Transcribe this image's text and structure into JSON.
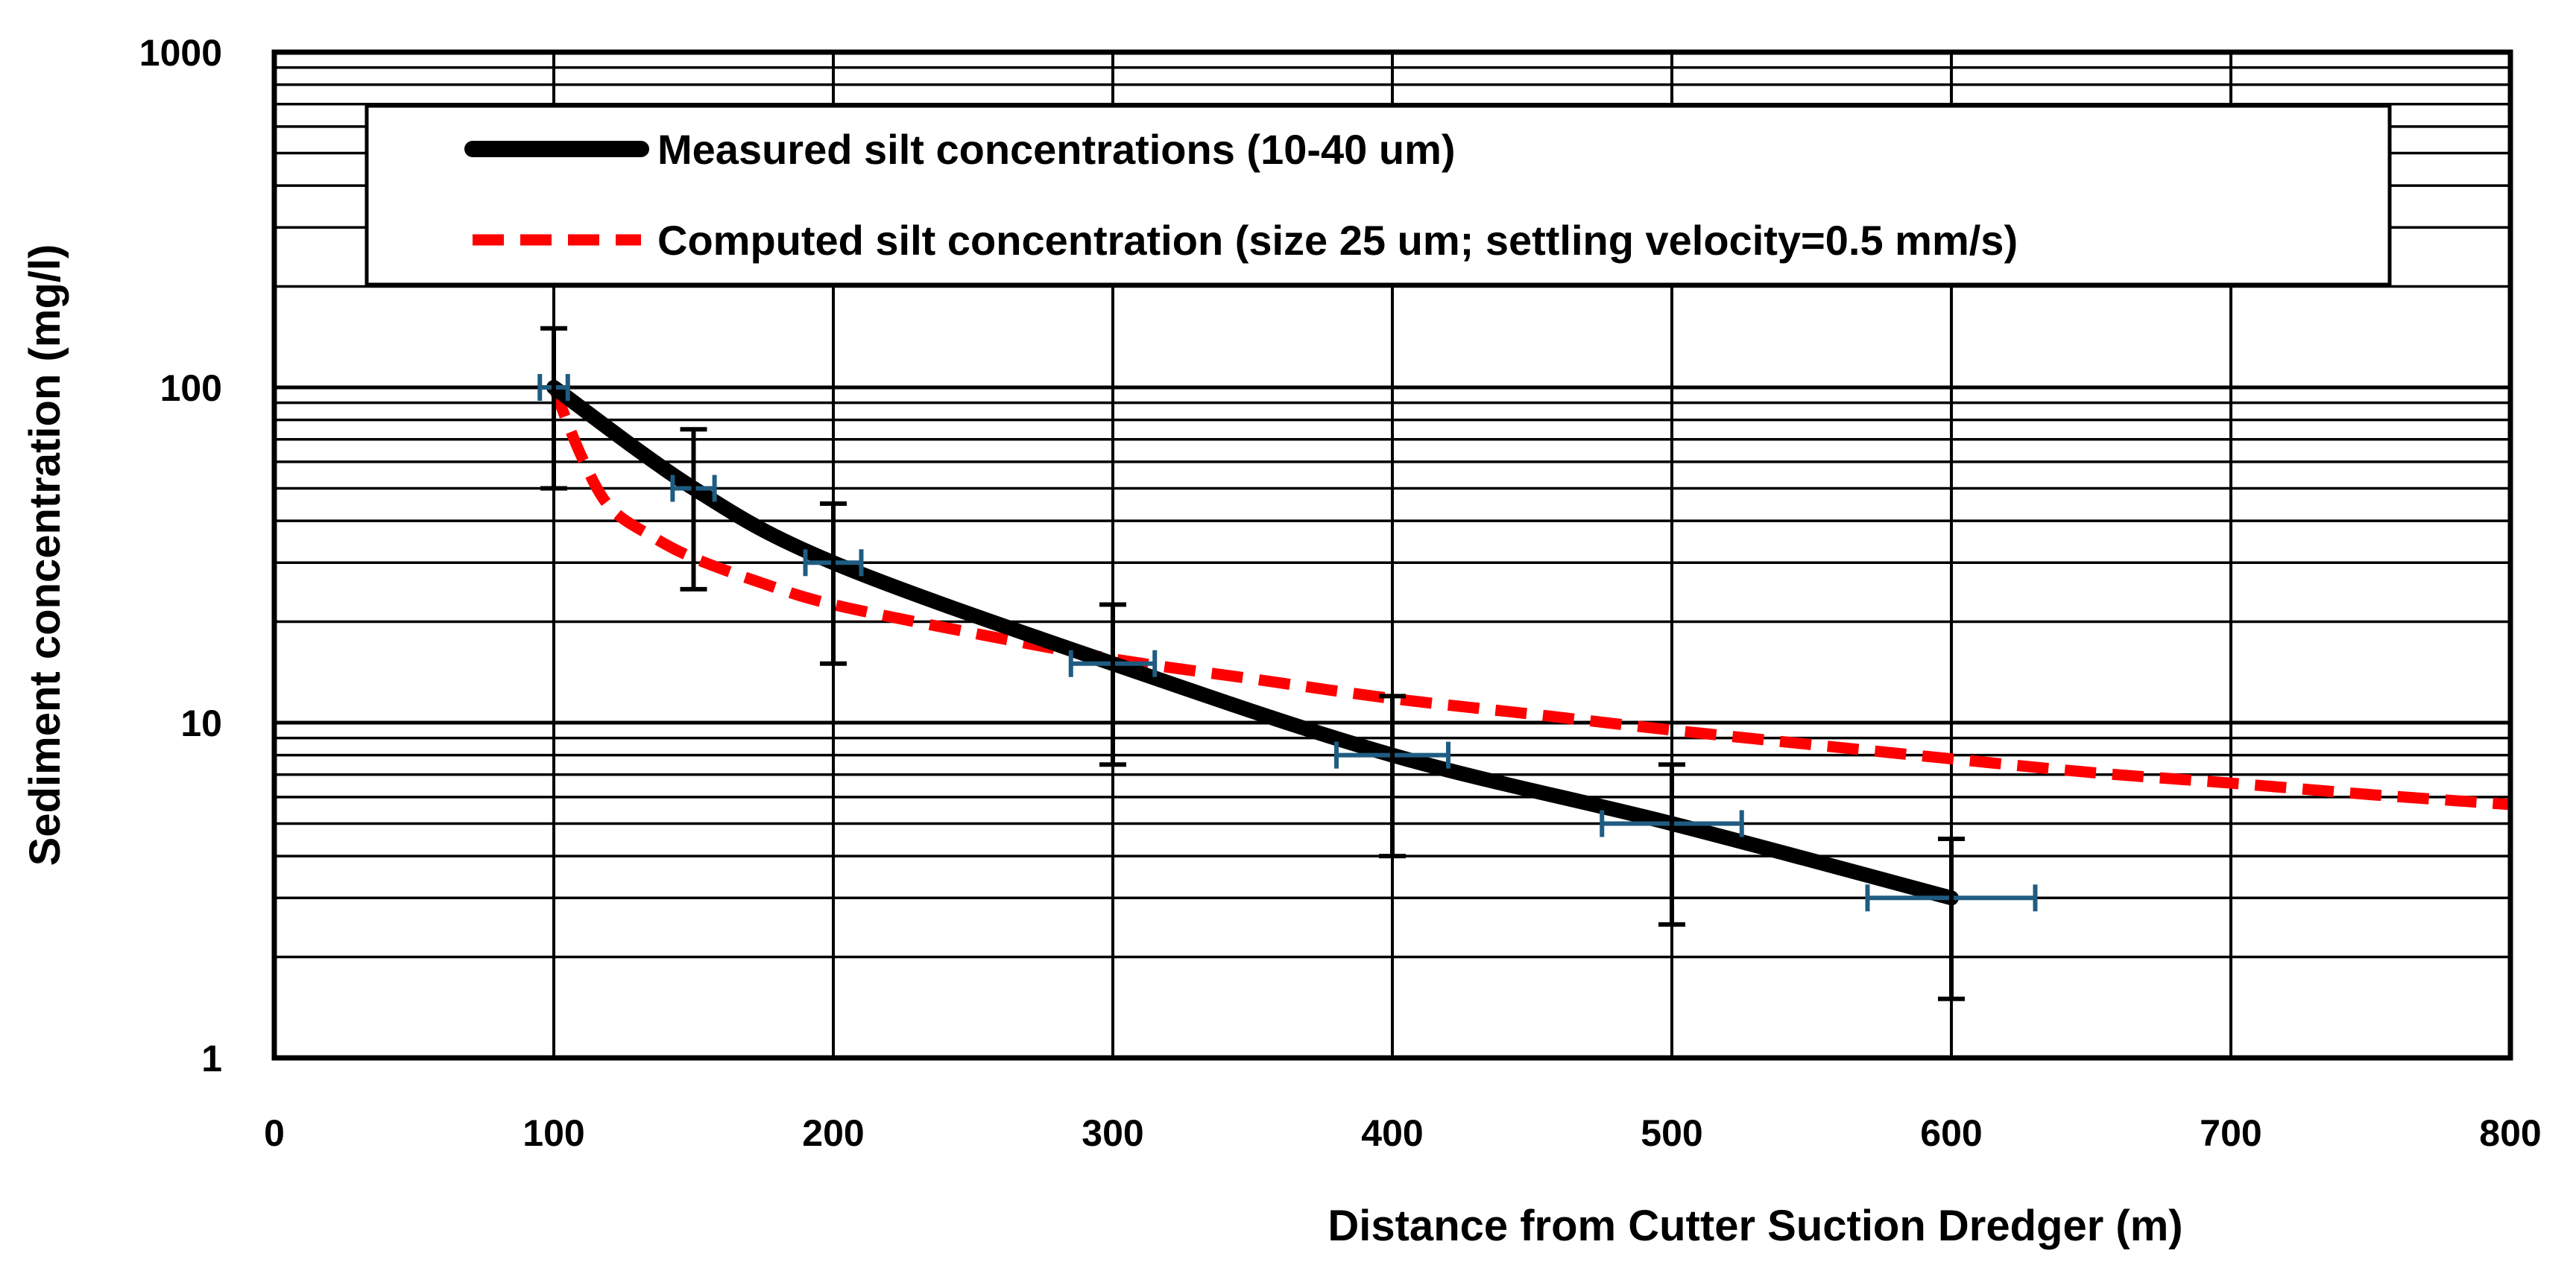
{
  "chart_data": {
    "type": "line",
    "title": "",
    "xlabel": "Distance from Cutter Suction Dredger (m)",
    "ylabel": "Sediment concentration (mg/l)",
    "xlim": [
      0,
      800
    ],
    "ylim": [
      1,
      1000
    ],
    "yscale": "log",
    "grid": true,
    "legend_position": "top",
    "x_ticks": [
      0,
      100,
      200,
      300,
      400,
      500,
      600,
      700,
      800
    ],
    "x_tick_labels": [
      "0",
      "100",
      "200",
      "300",
      "400",
      "500",
      "600",
      "700",
      "800"
    ],
    "y_ticks": [
      1,
      10,
      100,
      1000
    ],
    "y_tick_labels": [
      "1",
      "10",
      "100",
      "1000"
    ],
    "series": [
      {
        "name": "Measured silt concentrations (10-40 um)",
        "color": "#000000",
        "style": "solid",
        "x": [
          100,
          150,
          200,
          300,
          400,
          500,
          600
        ],
        "y": [
          100,
          50,
          30,
          15,
          8,
          5,
          3
        ],
        "y_error_low": [
          50,
          25,
          15,
          7.5,
          4,
          2.5,
          1.5
        ],
        "y_error_high": [
          150,
          75,
          45,
          22.5,
          12,
          7.5,
          4.5
        ],
        "x_error": [
          5,
          7.5,
          10,
          15,
          20,
          25,
          30
        ]
      },
      {
        "name": "Computed silt concentration (size 25 um; settling velocity=0.5 mm/s)",
        "color": "#ff0000",
        "style": "dashed",
        "x": [
          100,
          110,
          120,
          135,
          150,
          175,
          200,
          250,
          300,
          350,
          400,
          450,
          500,
          550,
          600,
          650,
          700,
          750,
          800
        ],
        "y": [
          100,
          62,
          44,
          36,
          31,
          26,
          22.5,
          18.5,
          15.5,
          13.5,
          11.8,
          10.6,
          9.5,
          8.6,
          7.8,
          7.1,
          6.6,
          6.1,
          5.7
        ]
      }
    ],
    "x_error_bar_color": "#1f5c82",
    "y_error_bar_color": "#000000"
  }
}
